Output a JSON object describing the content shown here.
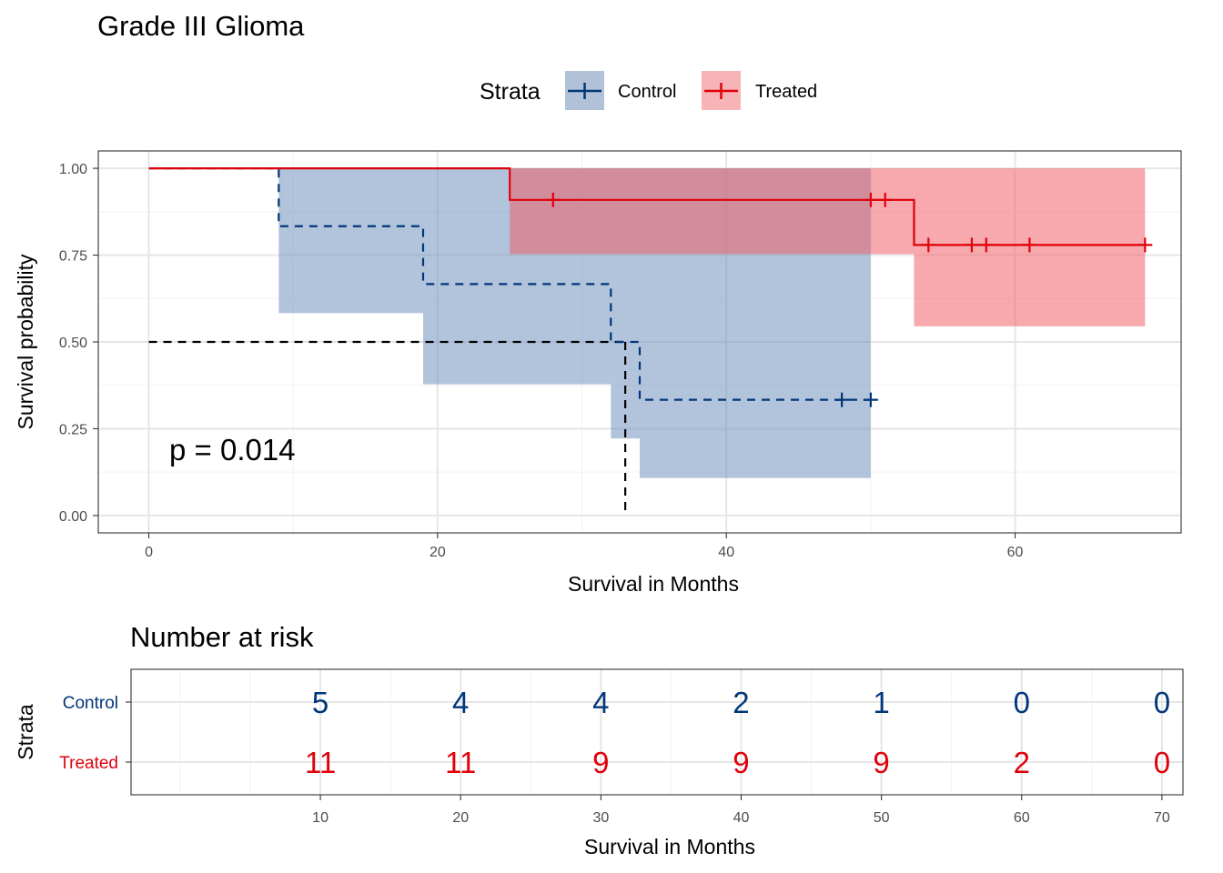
{
  "chart_data": [
    {
      "type": "line",
      "subtype": "kaplan-meier",
      "title": "Grade III Glioma",
      "xlabel": "Survival in Months",
      "ylabel": "Survival probability",
      "xlim": [
        -3.5,
        71.5
      ],
      "ylim": [
        -0.05,
        1.05
      ],
      "x_ticks": [
        0,
        20,
        40,
        60
      ],
      "y_ticks": [
        0,
        0.25,
        0.5,
        0.75,
        1.0
      ],
      "y_tick_labels": [
        "0.00",
        "0.25",
        "0.50",
        "0.75",
        "1.00"
      ],
      "x_tick_labels": [
        "0",
        "20",
        "40",
        "60"
      ],
      "grid": true,
      "legend": {
        "title": "Strata",
        "position": "top"
      },
      "annotation": "p = 0.014",
      "median_line": {
        "y": 0.5,
        "x": 33
      },
      "series": [
        {
          "name": "Control",
          "color": "#00367a",
          "line_style": "dashed",
          "steps": [
            [
              0,
              1.0
            ],
            [
              9,
              0.8333
            ],
            [
              19,
              0.6667
            ],
            [
              32,
              0.5
            ],
            [
              34,
              0.3333
            ]
          ],
          "end_x": 50,
          "censors": [
            [
              48,
              0.3333
            ],
            [
              50,
              0.3333
            ]
          ],
          "ci": [
            {
              "x0": 9,
              "x1": 19,
              "lo": 0.583,
              "hi": 1.0
            },
            {
              "x0": 19,
              "x1": 32,
              "lo": 0.378,
              "hi": 1.0
            },
            {
              "x0": 32,
              "x1": 34,
              "lo": 0.222,
              "hi": 1.0
            },
            {
              "x0": 34,
              "x1": 50,
              "lo": 0.108,
              "hi": 1.0
            }
          ]
        },
        {
          "name": "Treated",
          "color": "#e0000a",
          "line_style": "solid",
          "steps": [
            [
              0,
              1.0
            ],
            [
              25,
              0.9091
            ],
            [
              53,
              0.7792
            ]
          ],
          "end_x": 69,
          "censors": [
            [
              28,
              0.9091
            ],
            [
              50,
              0.9091
            ],
            [
              51,
              0.9091
            ],
            [
              54,
              0.7792
            ],
            [
              57,
              0.7792
            ],
            [
              58,
              0.7792
            ],
            [
              61,
              0.7792
            ],
            [
              69,
              0.7792
            ]
          ],
          "ci": [
            {
              "x0": 25,
              "x1": 53,
              "lo": 0.753,
              "hi": 1.0
            },
            {
              "x0": 53,
              "x1": 69,
              "lo": 0.545,
              "hi": 1.0
            }
          ]
        }
      ]
    },
    {
      "type": "table",
      "title": "Number at risk",
      "xlabel": "Survival in Months",
      "ylabel": "Strata",
      "xlim": [
        -3.5,
        71.5
      ],
      "x_ticks": [
        10,
        20,
        30,
        40,
        50,
        60,
        70
      ],
      "x_tick_labels": [
        "10",
        "20",
        "30",
        "40",
        "50",
        "60",
        "70"
      ],
      "rows": [
        {
          "name": "Control",
          "color": "#00367a",
          "values": [
            "5",
            "4",
            "4",
            "2",
            "1",
            "0",
            "0"
          ]
        },
        {
          "name": "Treated",
          "color": "#e0000a",
          "values": [
            "11",
            "11",
            "9",
            "9",
            "9",
            "2",
            "0"
          ]
        }
      ]
    }
  ]
}
